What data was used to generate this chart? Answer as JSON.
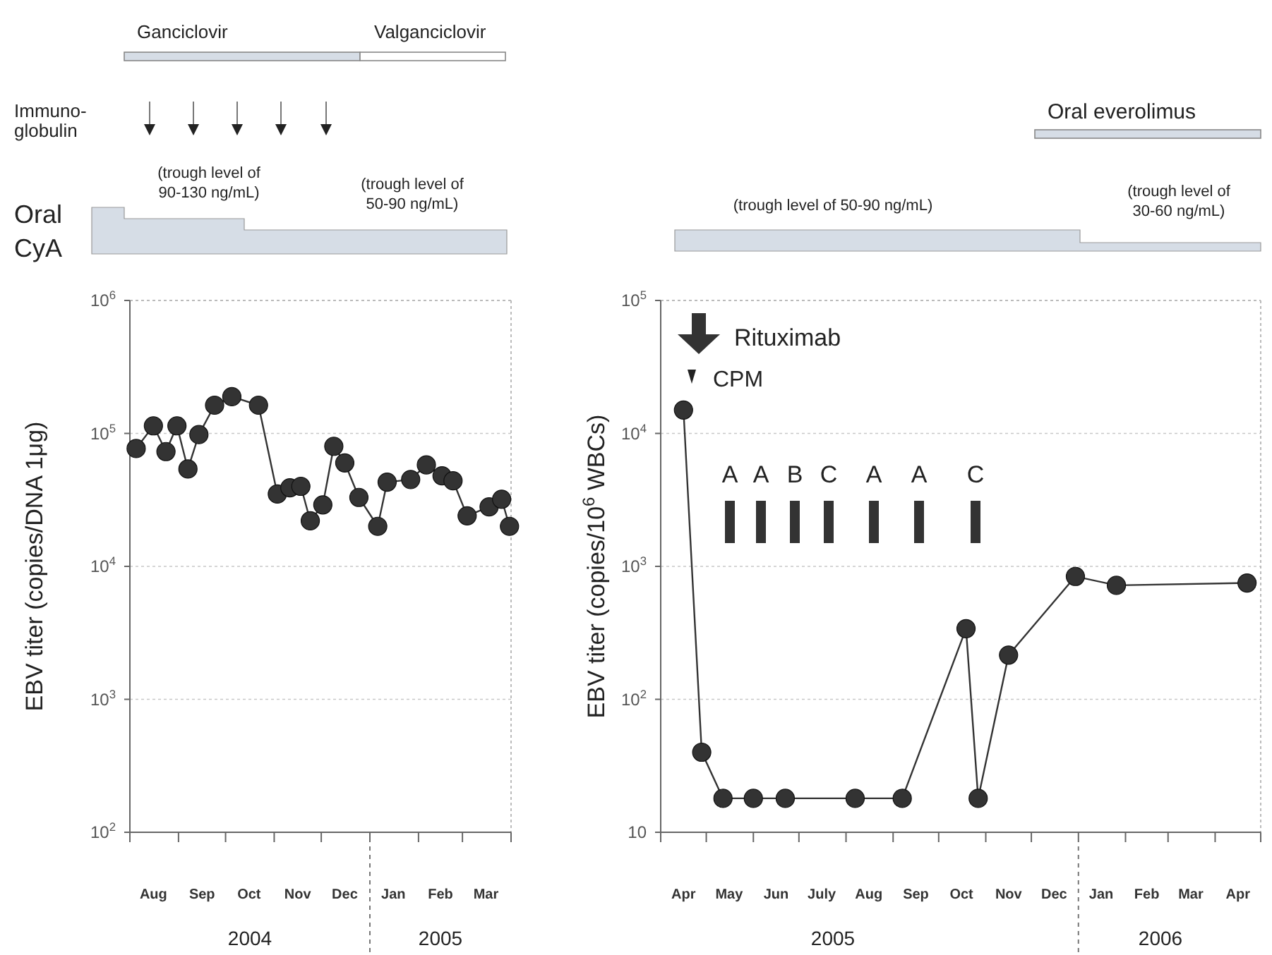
{
  "chart_data": [
    {
      "type": "line",
      "ylabel": "EBV titer (copies/DNA 1μg)",
      "color": "#333333",
      "marker": "circle",
      "log": true,
      "grid": "y",
      "x": [
        "2004-08-05",
        "2004-08-16",
        "2004-08-24",
        "2004-08-31",
        "2004-09-07",
        "2004-09-14",
        "2004-09-24",
        "2004-10-05",
        "2004-10-22",
        "2004-11-03",
        "2004-11-11",
        "2004-11-18",
        "2004-11-24",
        "2004-12-02",
        "2004-12-09",
        "2004-12-16",
        "2004-12-25",
        "2005-01-06",
        "2005-01-12",
        "2005-01-27",
        "2005-02-06",
        "2005-02-16",
        "2005-02-23",
        "2005-03-04",
        "2005-03-18",
        "2005-03-26",
        "2005-03-31"
      ],
      "values": [
        77000,
        114000,
        73000,
        114000,
        54000,
        98000,
        163000,
        189000,
        163000,
        35000,
        39000,
        40000,
        22000,
        29000,
        80000,
        60000,
        33000,
        20000,
        43000,
        45000,
        58000,
        48000,
        44000,
        24000,
        28000,
        32000,
        20000
      ],
      "xlim": [
        "2004-08-01",
        "2005-04-01"
      ],
      "xticks": [
        {
          "value": "2004-08-01",
          "label": null
        },
        {
          "value": "2004-08-16",
          "label": "Aug"
        },
        {
          "value": "2004-09-01",
          "label": null
        },
        {
          "value": "2004-09-16",
          "label": "Sep"
        },
        {
          "value": "2004-10-01",
          "label": null
        },
        {
          "value": "2004-10-16",
          "label": "Oct"
        },
        {
          "value": "2004-11-01",
          "label": null
        },
        {
          "value": "2004-11-16",
          "label": "Nov"
        },
        {
          "value": "2004-12-01",
          "label": null
        },
        {
          "value": "2004-12-16",
          "label": "Dec"
        },
        {
          "value": "2005-01-01",
          "label": null
        },
        {
          "value": "2005-01-16",
          "label": "Jan"
        },
        {
          "value": "2005-02-01",
          "label": null
        },
        {
          "value": "2005-02-15",
          "label": "Feb"
        },
        {
          "value": "2005-03-01",
          "label": null
        },
        {
          "value": "2005-03-16",
          "label": "Mar"
        },
        {
          "value": "2005-04-01",
          "label": null
        }
      ],
      "ylim": [
        100,
        1000000
      ],
      "yticks": [
        {
          "value": 100,
          "label": "10$^{2}$"
        },
        {
          "value": 1000,
          "label": "10$^{3}$"
        },
        {
          "value": 10000,
          "label": "10$^{4}$"
        },
        {
          "value": 100000,
          "label": "10$^{5}$"
        },
        {
          "value": 1000000,
          "label": "10$^{6}$"
        }
      ],
      "annotations": [
        "Ganciclovir",
        "Valganciclovir",
        "Immuno-\nglobulin",
        "(trough level of\n90-130 ng/mL)",
        "(trough level of\n50-90 ng/mL)",
        "Oral\nCyA",
        "2004",
        "2005"
      ]
    },
    {
      "type": "line",
      "ylabel": "EBV titer (copies/10$^{6}$ WBCs)",
      "color": "#333333",
      "marker": "circle",
      "log": true,
      "grid": "y",
      "x": [
        "2005-04-16",
        "2005-04-28",
        "2005-05-12",
        "2005-06-01",
        "2005-06-22",
        "2005-08-07",
        "2005-09-07",
        "2005-10-19",
        "2005-10-27",
        "2005-11-16",
        "2005-12-30",
        "2006-01-26",
        "2006-04-22"
      ],
      "values": [
        15000,
        40,
        18,
        18,
        18,
        18,
        18,
        340,
        18,
        215,
        840,
        720,
        750
      ],
      "xlim": [
        "2005-04-01",
        "2006-05-01"
      ],
      "xticks": [
        {
          "value": "2005-04-01",
          "label": null
        },
        {
          "value": "2005-04-16",
          "label": "Apr"
        },
        {
          "value": "2005-05-01",
          "label": null
        },
        {
          "value": "2005-05-16",
          "label": "May"
        },
        {
          "value": "2005-06-01",
          "label": null
        },
        {
          "value": "2005-06-16",
          "label": "Jun"
        },
        {
          "value": "2005-07-01",
          "label": null
        },
        {
          "value": "2005-07-16",
          "label": "July"
        },
        {
          "value": "2005-08-01",
          "label": null
        },
        {
          "value": "2005-08-16",
          "label": "Aug"
        },
        {
          "value": "2005-09-01",
          "label": null
        },
        {
          "value": "2005-09-16",
          "label": "Sep"
        },
        {
          "value": "2005-10-01",
          "label": null
        },
        {
          "value": "2005-10-16",
          "label": "Oct"
        },
        {
          "value": "2005-11-01",
          "label": null
        },
        {
          "value": "2005-11-16",
          "label": "Nov"
        },
        {
          "value": "2005-12-01",
          "label": null
        },
        {
          "value": "2005-12-16",
          "label": "Dec"
        },
        {
          "value": "2006-01-01",
          "label": null
        },
        {
          "value": "2006-01-16",
          "label": "Jan"
        },
        {
          "value": "2006-02-01",
          "label": null
        },
        {
          "value": "2006-02-15",
          "label": "Feb"
        },
        {
          "value": "2006-03-01",
          "label": null
        },
        {
          "value": "2006-03-16",
          "label": "Mar"
        },
        {
          "value": "2006-04-01",
          "label": null
        },
        {
          "value": "2006-04-16",
          "label": "Apr"
        },
        {
          "value": "2006-05-01",
          "label": null
        }
      ],
      "ylim": [
        10,
        100000
      ],
      "yticks": [
        10,
        {
          "value": 100,
          "label": "10$^{2}$"
        },
        {
          "value": 1000,
          "label": "10$^{3}$"
        },
        {
          "value": 10000,
          "label": "10$^{4}$"
        },
        {
          "value": 100000,
          "label": "10$^{5}$"
        }
      ],
      "annotations": [
        "Oral everolimus",
        "(trough level of 50-90 ng/mL)",
        "(trough level of\n30-60 ng/mL)",
        "Rituximab",
        "CPM",
        "A",
        "A",
        "B",
        "C",
        "A",
        "A",
        "C",
        "2005",
        "2006"
      ]
    }
  ]
}
